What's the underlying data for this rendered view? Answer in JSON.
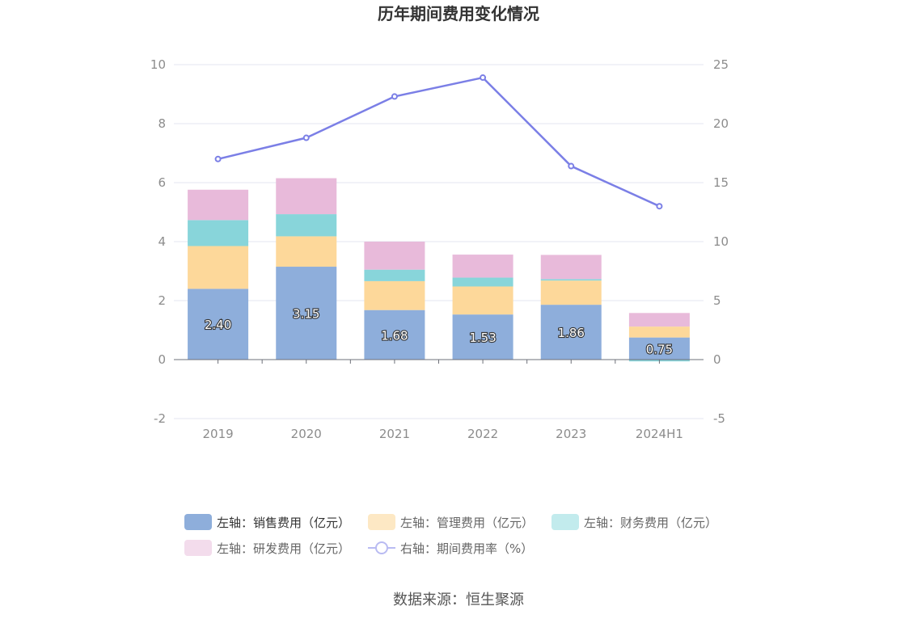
{
  "source_label": "数据来源：恒生聚源",
  "chart_data": {
    "type": "bar",
    "title": "历年期间费用变化情况",
    "categories": [
      "2019",
      "2020",
      "2021",
      "2022",
      "2023",
      "2024H1"
    ],
    "left_axis": {
      "min": -2,
      "max": 10,
      "ticks": [
        -2,
        0,
        2,
        4,
        6,
        8,
        10
      ],
      "tick_labels": [
        "-2",
        "0",
        "2",
        "4",
        "6",
        "8",
        "10"
      ]
    },
    "right_axis": {
      "min": -5,
      "max": 25,
      "ticks": [
        -5,
        0,
        5,
        10,
        15,
        20,
        25
      ],
      "tick_labels": [
        "-5",
        "0",
        "5",
        "10",
        "15",
        "20",
        "25"
      ]
    },
    "grid": true,
    "legend_position": "bottom",
    "series": [
      {
        "name": "左轴：销售费用（亿元）",
        "type": "bar",
        "stack": true,
        "axis": "left",
        "color": "#8eaedb",
        "values": [
          2.4,
          3.15,
          1.68,
          1.53,
          1.86,
          0.75
        ],
        "data_labels": [
          "2.40",
          "3.15",
          "1.68",
          "1.53",
          "1.86",
          "0.75"
        ]
      },
      {
        "name": "左轴：管理费用（亿元）",
        "type": "bar",
        "stack": true,
        "axis": "left",
        "color": "#fdd89a",
        "values": [
          1.45,
          1.03,
          0.98,
          0.95,
          0.82,
          0.37
        ]
      },
      {
        "name": "左轴：财务费用（亿元）",
        "type": "bar",
        "stack": true,
        "axis": "left",
        "color": "#88d5da",
        "values": [
          0.88,
          0.75,
          0.39,
          0.3,
          0.05,
          -0.06
        ]
      },
      {
        "name": "左轴：研发费用（亿元）",
        "type": "bar",
        "stack": true,
        "axis": "left",
        "color": "#e8bada",
        "values": [
          1.03,
          1.22,
          0.95,
          0.78,
          0.82,
          0.46
        ]
      },
      {
        "name": "右轴：期间费用率（%）",
        "type": "line",
        "axis": "right",
        "color": "#7b7fe6",
        "values": [
          17.0,
          18.8,
          22.3,
          23.9,
          16.4,
          13.0
        ]
      }
    ]
  }
}
